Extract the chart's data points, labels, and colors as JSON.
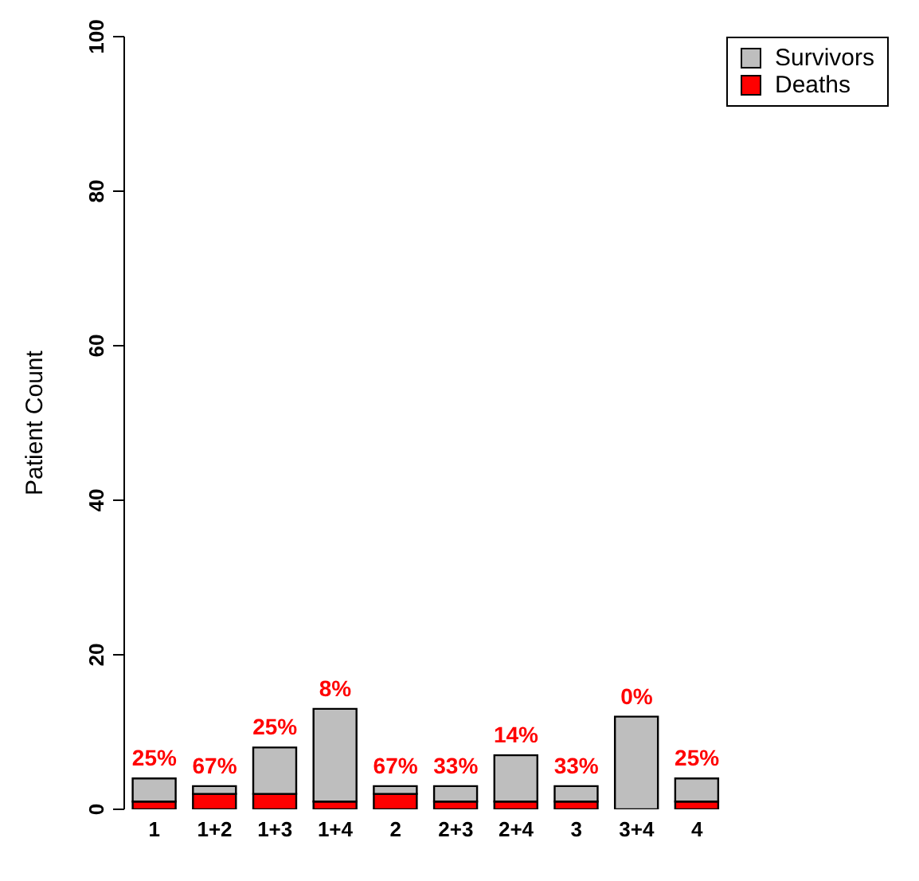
{
  "chart_data": {
    "type": "bar",
    "ylabel": "Patient Count",
    "categories": [
      "1",
      "1+2",
      "1+3",
      "1+4",
      "2",
      "2+3",
      "2+4",
      "3",
      "3+4",
      "4"
    ],
    "stacked": true,
    "ylim": [
      0,
      100
    ],
    "yticks": [
      0,
      20,
      40,
      60,
      80,
      100
    ],
    "grid": false,
    "legend": "top right",
    "series": [
      {
        "name": "Deaths",
        "color": "#ff0000",
        "values": [
          1,
          2,
          2,
          1,
          2,
          1,
          1,
          1,
          0,
          1
        ]
      },
      {
        "name": "Survivors",
        "color": "#bebebe",
        "values": [
          3,
          1,
          6,
          12,
          1,
          2,
          6,
          2,
          12,
          3
        ]
      }
    ],
    "annotations": [
      {
        "text": "25%",
        "x": "1",
        "y": 4
      },
      {
        "text": "67%",
        "x": "1+2",
        "y": 3
      },
      {
        "text": "25%",
        "x": "1+3",
        "y": 8
      },
      {
        "text": "8%",
        "x": "1+4",
        "y": 13
      },
      {
        "text": "67%",
        "x": "2",
        "y": 3
      },
      {
        "text": "33%",
        "x": "2+3",
        "y": 3
      },
      {
        "text": "14%",
        "x": "2+4",
        "y": 7
      },
      {
        "text": "33%",
        "x": "3",
        "y": 3
      },
      {
        "text": "0%",
        "x": "3+4",
        "y": 12
      },
      {
        "text": "25%",
        "x": "4",
        "y": 4
      }
    ]
  }
}
